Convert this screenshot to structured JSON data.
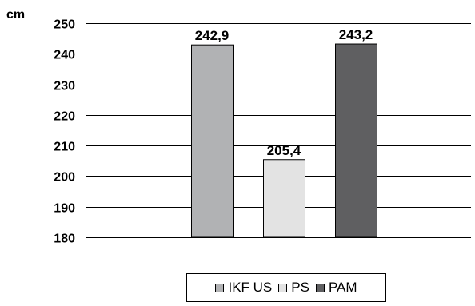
{
  "chart_data": {
    "type": "bar",
    "unit_label": "cm",
    "categories": [
      "IKF US",
      "PS",
      "PAM"
    ],
    "values": [
      242.9,
      205.4,
      243.2
    ],
    "value_labels": [
      "242,9",
      "205,4",
      "243,2"
    ],
    "colors": [
      "#b1b2b4",
      "#e3e3e3",
      "#5f5f61"
    ],
    "ylim": [
      180,
      250
    ],
    "yticks": [
      180,
      190,
      200,
      210,
      220,
      230,
      240,
      250
    ],
    "ytick_labels": [
      "180",
      "190",
      "200",
      "210",
      "220",
      "230",
      "240",
      "250"
    ],
    "grid": true,
    "legend_position": "bottom-center",
    "title": "",
    "xlabel": "",
    "ylabel": ""
  },
  "legend": {
    "items": [
      {
        "label": "IKF US",
        "color": "#b1b2b4"
      },
      {
        "label": "PS",
        "color": "#e3e3e3"
      },
      {
        "label": "PAM",
        "color": "#5f5f61"
      }
    ]
  }
}
